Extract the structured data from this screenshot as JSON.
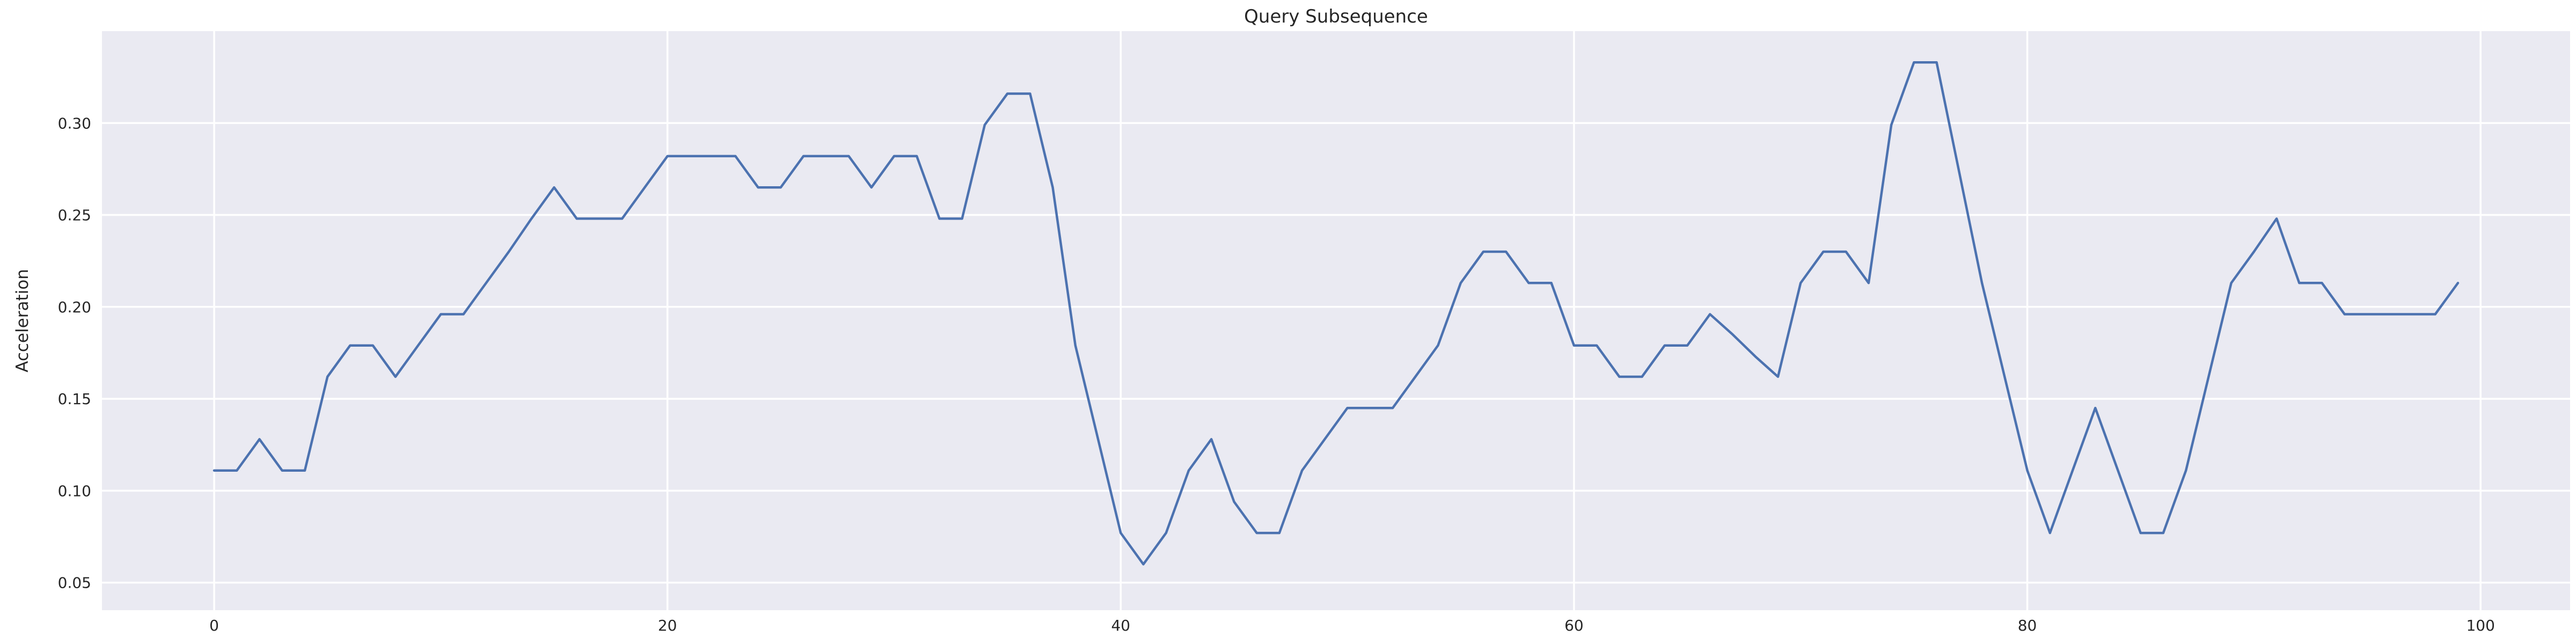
{
  "title": "Query Subsequence",
  "ylabel": "Acceleration",
  "chart_data": {
    "type": "line",
    "title": "Query Subsequence",
    "xlabel": "",
    "ylabel": "Acceleration",
    "legend_position": "none",
    "grid": true,
    "x_start": 0,
    "x_step": 1,
    "values": [
      0.111,
      0.111,
      0.128,
      0.111,
      0.111,
      0.162,
      0.179,
      0.179,
      0.162,
      0.179,
      0.196,
      0.196,
      0.213,
      0.23,
      0.248,
      0.265,
      0.248,
      0.248,
      0.248,
      0.265,
      0.282,
      0.282,
      0.282,
      0.282,
      0.265,
      0.265,
      0.282,
      0.282,
      0.282,
      0.265,
      0.282,
      0.282,
      0.248,
      0.248,
      0.299,
      0.316,
      0.316,
      0.265,
      0.179,
      0.128,
      0.077,
      0.06,
      0.077,
      0.111,
      0.128,
      0.094,
      0.077,
      0.077,
      0.111,
      0.128,
      0.145,
      0.145,
      0.145,
      0.162,
      0.179,
      0.213,
      0.23,
      0.23,
      0.213,
      0.213,
      0.179,
      0.179,
      0.162,
      0.162,
      0.179,
      0.179,
      0.196,
      0.185,
      0.173,
      0.162,
      0.213,
      0.23,
      0.23,
      0.213,
      0.299,
      0.333,
      0.333,
      0.273,
      0.213,
      0.162,
      0.111,
      0.077,
      0.111,
      0.145,
      0.111,
      0.077,
      0.077,
      0.111,
      0.162,
      0.213,
      0.23,
      0.248,
      0.213,
      0.213,
      0.196,
      0.196,
      0.196,
      0.196,
      0.196,
      0.213
    ],
    "xticks": [
      0,
      20,
      40,
      60,
      80,
      100
    ],
    "xtick_labels": [
      "0",
      "20",
      "40",
      "60",
      "80",
      "100"
    ],
    "yticks": [
      0.05,
      0.1,
      0.15,
      0.2,
      0.25,
      0.3
    ],
    "ytick_labels": [
      "0.05",
      "0.10",
      "0.15",
      "0.20",
      "0.25",
      "0.30"
    ],
    "xlim": [
      -4.95,
      103.95
    ],
    "ylim": [
      0.035,
      0.35
    ],
    "line_color": "#4c72b0",
    "plot_background_color": "#eaeaf2",
    "grid_color": "#ffffff",
    "figure_background_color": "#ffffff",
    "text_color": "#262626"
  }
}
